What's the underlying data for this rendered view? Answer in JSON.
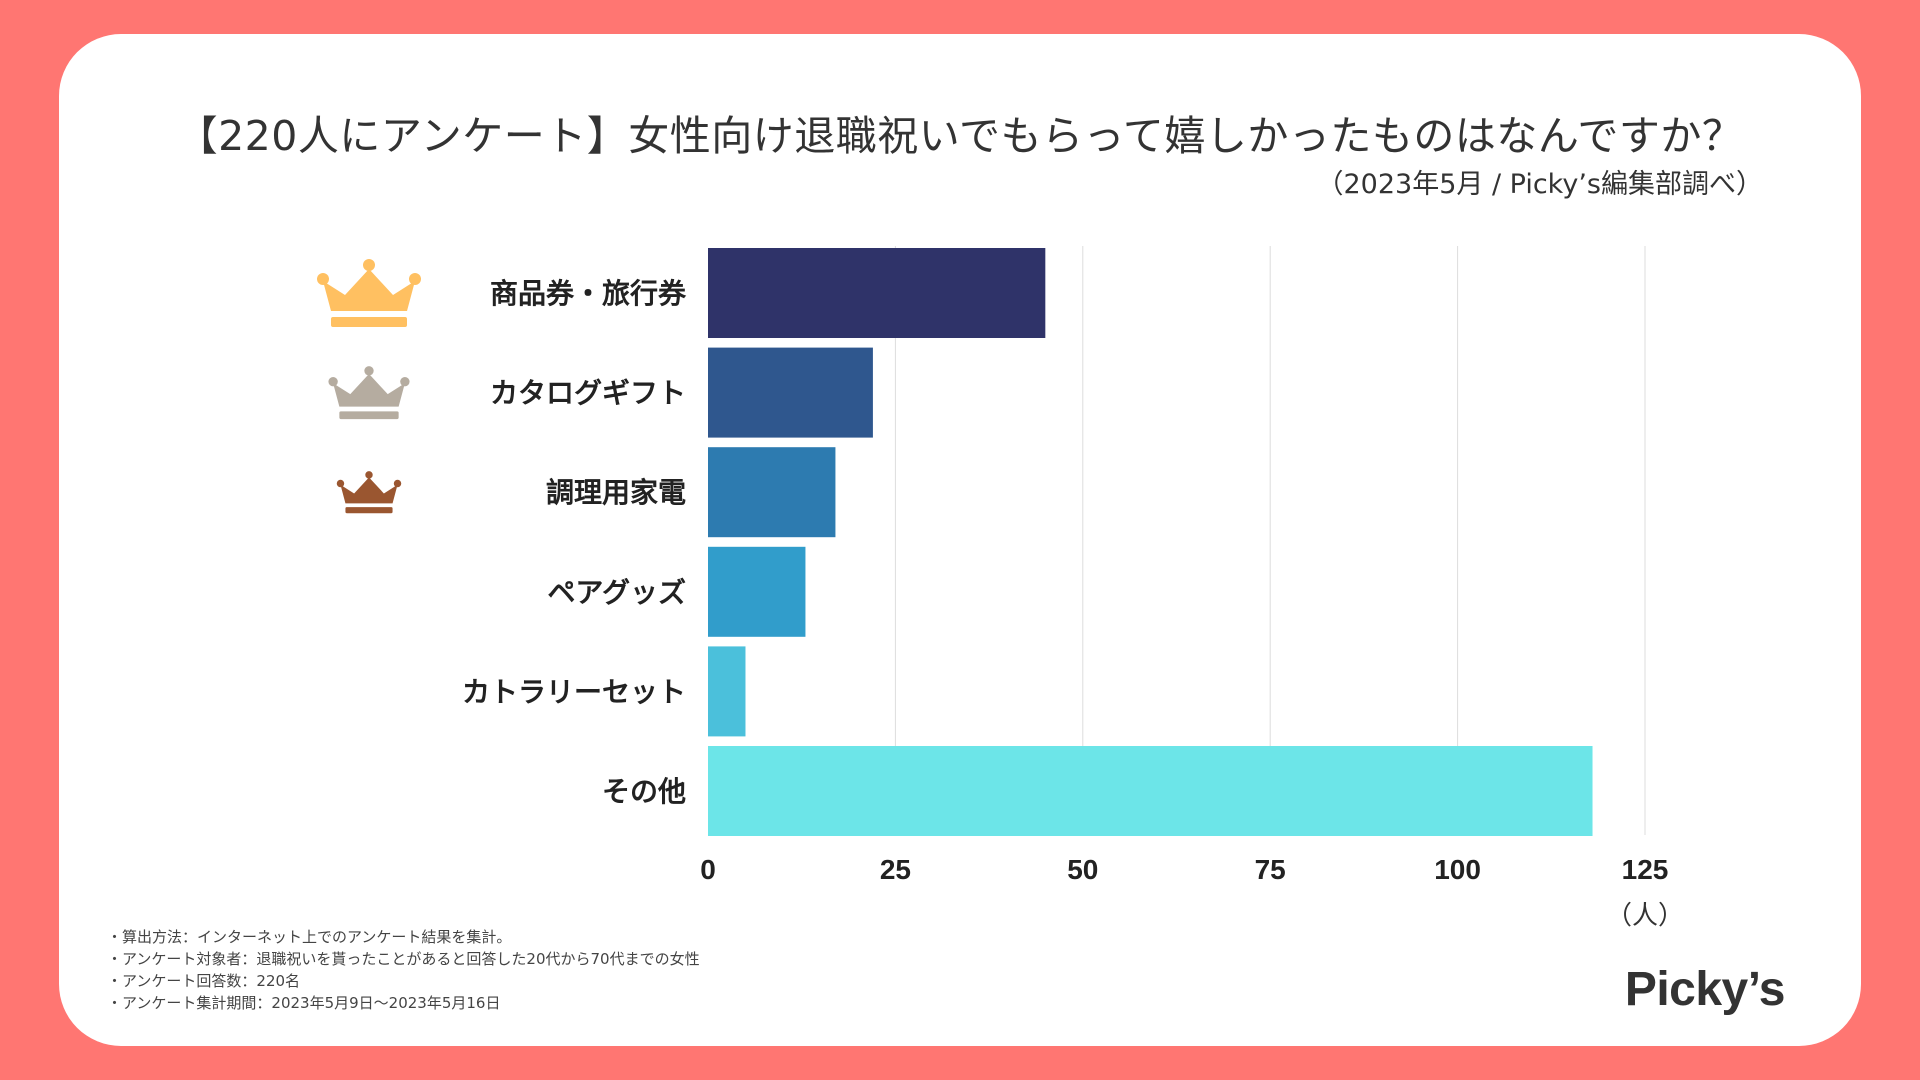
{
  "title": "【220人にアンケート】女性向け退職祝いでもらって嬉しかったものはなんですか？",
  "subtitle": "（2023年5月 / Picky’s編集部調べ）",
  "colors": {
    "background": "#FF7672",
    "card": "#FFFFFF",
    "gold": "#FFC061",
    "silver": "#B5ACA0",
    "bronze": "#9A5630",
    "gridline": "#DDDDDD"
  },
  "chart_data": {
    "type": "bar",
    "orientation": "horizontal",
    "categories": [
      "商品券・旅行券",
      "カタログギフト",
      "調理用家電",
      "ペアグッズ",
      "カトラリーセット",
      "その他"
    ],
    "values": [
      45,
      22,
      17,
      13,
      5,
      118
    ],
    "bar_colors": [
      "#2F3369",
      "#2F578E",
      "#2D7BB0",
      "#319DCB",
      "#4BC0DB",
      "#6CE5E8"
    ],
    "xlim": [
      0,
      125
    ],
    "xticks": [
      "0",
      "25",
      "50",
      "75",
      "100",
      "125"
    ],
    "xtick_values": [
      0,
      25,
      50,
      75,
      100,
      125
    ],
    "xlabel": "（人）",
    "grid": true,
    "rank_icons": [
      "crown-gold",
      "crown-silver",
      "crown-bronze"
    ]
  },
  "notes": [
    "・算出方法：インターネット上でのアンケート結果を集計。",
    "・アンケート対象者：退職祝いを貰ったことがあると回答した20代から70代までの女性",
    "・アンケート回答数：220名",
    "・アンケート集計期間：2023年5月9日〜2023年5月16日"
  ],
  "logo": "Picky’s"
}
